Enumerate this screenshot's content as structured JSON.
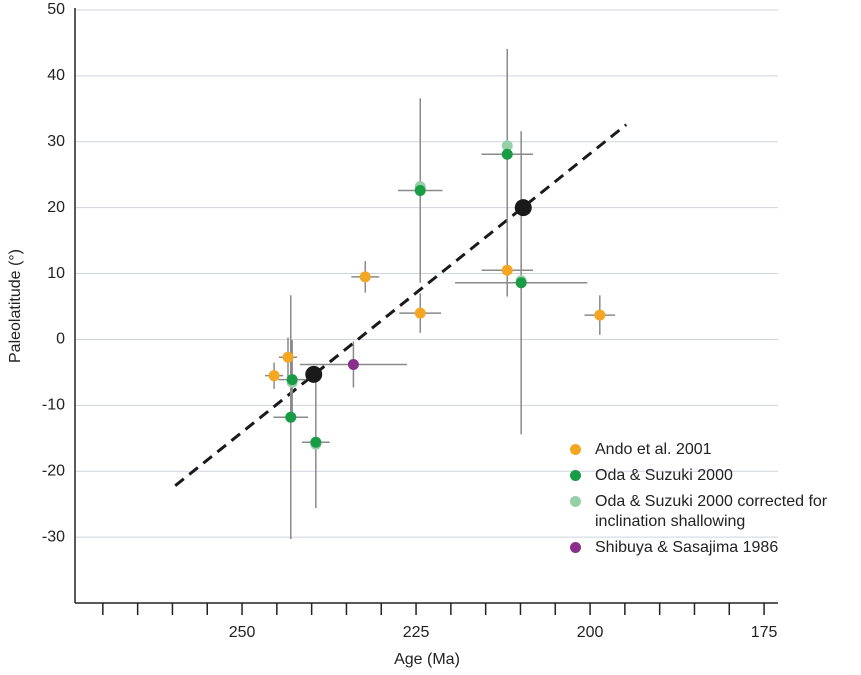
{
  "chart_data": {
    "type": "scatter",
    "x_label": "Age (Ma)",
    "y_label": "Paleolatitude (°)",
    "xlim": [
      274,
      173
    ],
    "ylim": [
      -40,
      50
    ],
    "xticks": [
      250,
      225,
      200,
      175
    ],
    "xminor_ticks": [
      270,
      265,
      260,
      255,
      245,
      240,
      235,
      230,
      220,
      215,
      210,
      205,
      195,
      190,
      185,
      180
    ],
    "yticks": [
      -30,
      -20,
      -10,
      0,
      10,
      20,
      30,
      40,
      50
    ],
    "grid": true,
    "legend": "lower right",
    "series": [
      {
        "name": "Ando et al. 2001",
        "color": "#f5a623",
        "x": [
          245.4,
          243.4,
          232.3,
          224.4,
          211.9,
          198.6
        ],
        "y": [
          -5.5,
          -2.7,
          9.5,
          4.0,
          10.5,
          3.7
        ],
        "xerr": [
          1.3,
          1.3,
          2,
          3,
          3.7,
          2.2
        ],
        "yerr": [
          2,
          3,
          2.4,
          3,
          4,
          3
        ]
      },
      {
        "name": "Oda & Suzuki 2000",
        "color": "#1a9c47",
        "x": [
          242.8,
          243.0,
          239.4,
          224.4,
          211.9,
          209.9
        ],
        "y": [
          -6.1,
          -11.8,
          -15.6,
          22.6,
          28.1,
          8.6
        ],
        "xerr": [
          2,
          2.5,
          2,
          3.2,
          3.7,
          9.5
        ],
        "yerr": [
          6,
          18.5,
          10,
          14,
          16,
          23
        ]
      },
      {
        "name": "Oda & Suzuki 2000 corrected for inclination shallowing",
        "color": "#97cfa8",
        "x": [
          242.8,
          239.4,
          224.4,
          211.9,
          209.9
        ],
        "y": [
          -6.5,
          -15.9,
          23.2,
          29.4,
          8.9
        ]
      },
      {
        "name": "Shibuya & Sasajima 1986",
        "color": "#8b2f8c",
        "x": [
          234.0
        ],
        "y": [
          -3.8
        ],
        "xerr": [
          7.7
        ],
        "yerr": [
          3.5
        ]
      },
      {
        "color": "#1a1a1a",
        "x": [
          239.7,
          209.6
        ],
        "y": [
          -5.3,
          20.0
        ]
      },
      {
        "type": "line",
        "style": "dashed",
        "color": "#1a1a1a",
        "x": [
          259.6,
          194.8
        ],
        "y": [
          -22.2,
          32.6
        ]
      }
    ]
  }
}
